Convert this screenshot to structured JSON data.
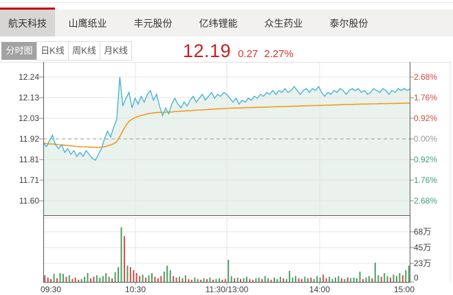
{
  "stock_tabs": {
    "items": [
      {
        "label": "航天科技",
        "active": true
      },
      {
        "label": "山鹰纸业",
        "active": false
      },
      {
        "label": "丰元股份",
        "active": false
      },
      {
        "label": "亿纬锂能",
        "active": false
      },
      {
        "label": "众生药业",
        "active": false
      },
      {
        "label": "泰尔股份",
        "active": false
      }
    ]
  },
  "chart_tabs": {
    "items": [
      {
        "label": "分时图",
        "active": true
      },
      {
        "label": "日K线",
        "active": false
      },
      {
        "label": "周K线",
        "active": false
      },
      {
        "label": "月K线",
        "active": false
      }
    ]
  },
  "quote": {
    "price": "12.19",
    "change": "0.27",
    "change_pct": "2.27%"
  },
  "colors": {
    "accent_red": "#c40000",
    "price_up_text": "#d0342c",
    "price_line": "#3fb0d4",
    "avg_line": "#f5991f",
    "area_fill": "#e9f2ec",
    "vol_up": "#4d9e5f",
    "vol_down": "#cc4f45",
    "pct_positive": "#d5483f",
    "pct_negative": "#3fa17c"
  },
  "chart_data": {
    "type": "line",
    "title": "分时图 intraday chart",
    "prev_close": 11.92,
    "current_price": 12.19,
    "change": 0.27,
    "change_pct": 2.27,
    "interval_min": 2,
    "left_axis": [
      "12.24",
      "12.13",
      "12.03",
      "11.92",
      "11.81",
      "11.71",
      "11.60"
    ],
    "right_axis": [
      "2.68%",
      "1.76%",
      "0.92%",
      "0.00%",
      "0.92%",
      "1.76%",
      "2.68%"
    ],
    "volume_axis": [
      "68万",
      "45万",
      "23万",
      "0"
    ],
    "x_labels": [
      "09:30",
      "10:30",
      "11:30/13:00",
      "14:00",
      "15:00"
    ],
    "price": [
      11.9,
      11.88,
      11.91,
      11.94,
      11.89,
      11.87,
      11.89,
      11.85,
      11.87,
      11.84,
      11.86,
      11.83,
      11.85,
      11.83,
      11.86,
      11.84,
      11.82,
      11.81,
      11.84,
      11.87,
      11.92,
      11.96,
      11.93,
      11.98,
      12.02,
      12.24,
      12.09,
      12.13,
      12.16,
      12.08,
      12.13,
      12.1,
      12.14,
      12.11,
      12.15,
      12.17,
      12.12,
      12.15,
      12.09,
      12.04,
      12.08,
      12.05,
      12.1,
      12.13,
      12.1,
      12.08,
      12.11,
      12.09,
      12.12,
      12.14,
      12.11,
      12.13,
      12.15,
      12.12,
      12.14,
      12.16,
      12.13,
      12.15,
      12.14,
      12.16,
      12.15,
      12.13,
      12.11,
      12.13,
      12.1,
      12.12,
      12.11,
      12.13,
      12.12,
      12.14,
      12.13,
      12.15,
      12.14,
      12.16,
      12.15,
      12.17,
      12.15,
      12.17,
      12.16,
      12.18,
      12.16,
      12.17,
      12.19,
      12.17,
      12.15,
      12.17,
      12.18,
      12.16,
      12.18,
      12.17,
      12.19,
      12.16,
      12.14,
      12.16,
      12.15,
      12.17,
      12.16,
      12.18,
      12.17,
      12.15,
      12.17,
      12.18,
      12.17,
      12.18,
      12.16,
      12.17,
      12.15,
      12.16,
      12.18,
      12.17,
      12.16,
      12.18,
      12.17,
      12.15,
      12.17,
      12.16,
      12.18,
      12.17,
      12.18,
      12.17,
      12.18
    ],
    "avg": [
      11.9,
      11.896,
      11.893,
      11.894,
      11.892,
      11.89,
      11.889,
      11.887,
      11.886,
      11.884,
      11.883,
      11.881,
      11.88,
      11.879,
      11.879,
      11.878,
      11.877,
      11.876,
      11.876,
      11.877,
      11.88,
      11.884,
      11.889,
      11.895,
      11.906,
      11.932,
      11.962,
      11.99,
      12.01,
      12.022,
      12.03,
      12.036,
      12.041,
      12.045,
      12.049,
      12.052,
      12.054,
      12.056,
      12.057,
      12.057,
      12.058,
      12.058,
      12.059,
      12.061,
      12.062,
      12.063,
      12.064,
      12.065,
      12.066,
      12.067,
      12.068,
      12.069,
      12.07,
      12.071,
      12.072,
      12.073,
      12.074,
      12.075,
      12.076,
      12.077,
      12.078,
      12.078,
      12.079,
      12.079,
      12.08,
      12.08,
      12.081,
      12.081,
      12.082,
      12.082,
      12.083,
      12.083,
      12.084,
      12.084,
      12.085,
      12.085,
      12.086,
      12.086,
      12.087,
      12.087,
      12.088,
      12.088,
      12.089,
      12.089,
      12.09,
      12.09,
      12.091,
      12.091,
      12.092,
      12.092,
      12.093,
      12.093,
      12.094,
      12.094,
      12.095,
      12.095,
      12.096,
      12.096,
      12.097,
      12.097,
      12.098,
      12.098,
      12.099,
      12.099,
      12.1,
      12.1,
      12.1,
      12.101,
      12.101,
      12.101,
      12.102,
      12.102,
      12.102,
      12.103,
      12.103,
      12.103,
      12.104,
      12.104,
      12.104,
      12.105,
      12.105
    ],
    "volume_unit": "万",
    "volume": [
      9,
      6,
      4,
      11,
      5,
      12,
      11,
      7,
      9,
      4,
      6,
      3,
      4,
      7,
      12,
      5,
      7,
      9,
      6,
      8,
      12,
      7,
      5,
      13,
      20,
      74,
      62,
      22,
      20,
      16,
      12,
      8,
      10,
      6,
      9,
      12,
      7,
      5,
      8,
      14,
      22,
      16,
      8,
      6,
      7,
      5,
      9,
      4,
      3,
      6,
      4,
      3,
      5,
      4,
      6,
      3,
      4,
      5,
      3,
      4,
      30,
      8,
      5,
      6,
      4,
      5,
      7,
      4,
      3,
      5,
      6,
      4,
      8,
      5,
      3,
      6,
      4,
      7,
      5,
      4,
      15,
      6,
      8,
      5,
      4,
      7,
      5,
      6,
      4,
      8,
      6,
      10,
      5,
      7,
      4,
      6,
      8,
      5,
      4,
      6,
      5,
      6,
      5,
      14,
      4,
      6,
      8,
      5,
      26,
      9,
      7,
      12,
      8,
      6,
      10,
      8,
      12,
      9,
      16,
      22
    ],
    "volume_dir": "rrrgrggrgrrrgggrrgggggrgggrgrrrrgrggrrrgggrrgrgrrggrgrgrggrrggrgrggrrggrggrgggrggggrrggrgggrrggggrgrggggrggrggrggrgggrgg"
  }
}
